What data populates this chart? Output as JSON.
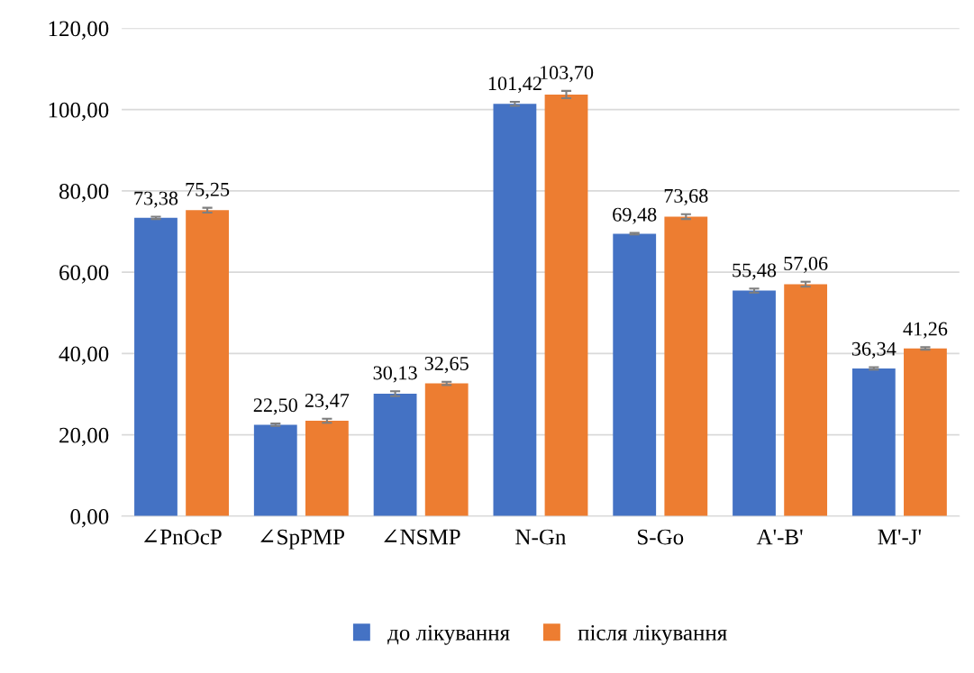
{
  "chart_data": {
    "type": "bar",
    "categories": [
      "∠PnOcP",
      "∠SpPMP",
      "∠NSMP",
      "N-Gn",
      "S-Go",
      "A'-B'",
      "M'-J'"
    ],
    "series": [
      {
        "name": "до лікування",
        "color": "#4472c4",
        "values": [
          73.38,
          22.5,
          30.13,
          101.42,
          69.48,
          55.48,
          36.34
        ],
        "errors": [
          0.3,
          0.3,
          0.6,
          0.5,
          0.2,
          0.5,
          0.3
        ],
        "value_labels": [
          "73,38",
          "22,50",
          "30,13",
          "101,42",
          "69,48",
          "55,48",
          "36,34"
        ]
      },
      {
        "name": "після лікування",
        "color": "#ed7d31",
        "values": [
          75.25,
          23.47,
          32.65,
          103.7,
          73.68,
          57.06,
          41.26
        ],
        "errors": [
          0.6,
          0.5,
          0.4,
          0.9,
          0.6,
          0.6,
          0.3
        ],
        "value_labels": [
          "75,25",
          "23,47",
          "32,65",
          "103,70",
          "73,68",
          "57,06",
          "41,26"
        ]
      }
    ],
    "ylim": [
      0,
      120
    ],
    "yticks": [
      {
        "value": 0,
        "label": "0,00"
      },
      {
        "value": 20,
        "label": "20,00"
      },
      {
        "value": 40,
        "label": "40,00"
      },
      {
        "value": 60,
        "label": "60,00"
      },
      {
        "value": 80,
        "label": "80,00"
      },
      {
        "value": 100,
        "label": "100,00"
      },
      {
        "value": 120,
        "label": "120,00"
      }
    ],
    "grid": "y",
    "legend": "bottom"
  }
}
